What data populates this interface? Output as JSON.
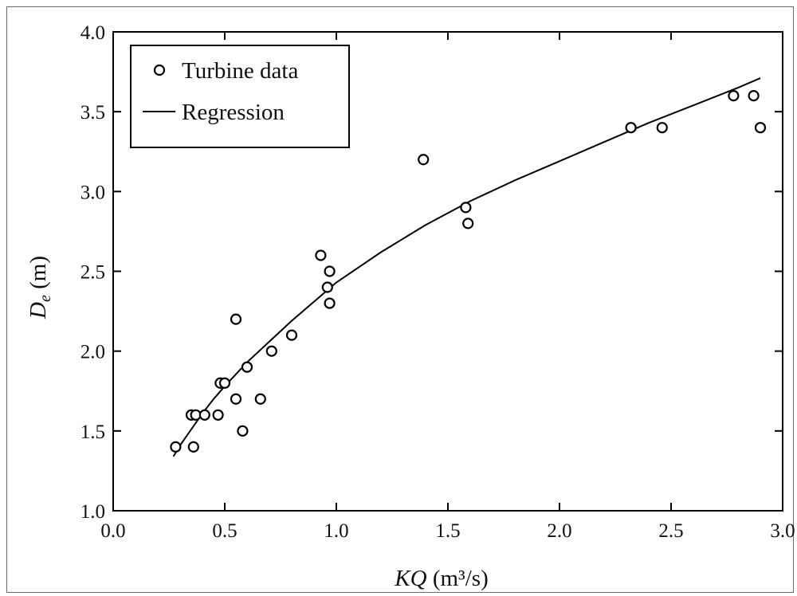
{
  "chart_data": {
    "type": "scatter",
    "xlabel": {
      "main": "KQ",
      "unit": "(m³/s)"
    },
    "ylabel": {
      "main": "D",
      "subscript": "e",
      "unit": "(m)"
    },
    "xlim": [
      0.0,
      3.0
    ],
    "ylim": [
      1.0,
      4.0
    ],
    "x_ticks": [
      "0.0",
      "0.5",
      "1.0",
      "1.5",
      "2.0",
      "2.5",
      "3.0"
    ],
    "y_ticks": [
      "1.0",
      "1.5",
      "2.0",
      "2.5",
      "3.0",
      "3.5",
      "4.0"
    ],
    "grid": false,
    "legend_position": "top-left",
    "series": [
      {
        "name": "Turbine data",
        "kind": "scatter",
        "marker": "open-circle",
        "points": [
          [
            0.28,
            1.4
          ],
          [
            0.35,
            1.6
          ],
          [
            0.36,
            1.4
          ],
          [
            0.37,
            1.6
          ],
          [
            0.41,
            1.6
          ],
          [
            0.47,
            1.6
          ],
          [
            0.48,
            1.8
          ],
          [
            0.5,
            1.8
          ],
          [
            0.55,
            1.7
          ],
          [
            0.55,
            2.2
          ],
          [
            0.58,
            1.5
          ],
          [
            0.6,
            1.9
          ],
          [
            0.66,
            1.7
          ],
          [
            0.71,
            2.0
          ],
          [
            0.8,
            2.1
          ],
          [
            0.93,
            2.6
          ],
          [
            0.96,
            2.4
          ],
          [
            0.97,
            2.3
          ],
          [
            0.97,
            2.5
          ],
          [
            1.39,
            3.2
          ],
          [
            1.58,
            2.9
          ],
          [
            1.59,
            2.8
          ],
          [
            2.32,
            3.4
          ],
          [
            2.46,
            3.4
          ],
          [
            2.78,
            3.6
          ],
          [
            2.87,
            3.6
          ],
          [
            2.9,
            3.4
          ]
        ]
      },
      {
        "name": "Regression",
        "kind": "line",
        "color": "#000000",
        "points": [
          [
            0.27,
            1.34
          ],
          [
            0.3,
            1.41
          ],
          [
            0.35,
            1.51
          ],
          [
            0.4,
            1.61
          ],
          [
            0.45,
            1.7
          ],
          [
            0.5,
            1.78
          ],
          [
            0.6,
            1.93
          ],
          [
            0.7,
            2.06
          ],
          [
            0.8,
            2.19
          ],
          [
            0.9,
            2.31
          ],
          [
            1.0,
            2.43
          ],
          [
            1.2,
            2.62
          ],
          [
            1.4,
            2.79
          ],
          [
            1.6,
            2.94
          ],
          [
            1.8,
            3.07
          ],
          [
            2.0,
            3.19
          ],
          [
            2.2,
            3.31
          ],
          [
            2.4,
            3.43
          ],
          [
            2.6,
            3.54
          ],
          [
            2.8,
            3.65
          ],
          [
            2.9,
            3.71
          ]
        ]
      }
    ]
  }
}
